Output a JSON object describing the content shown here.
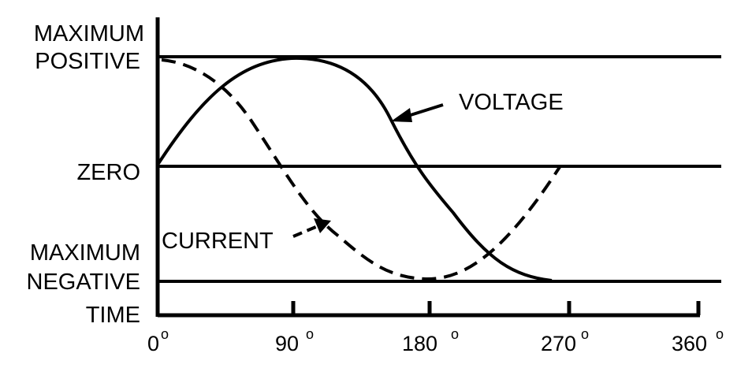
{
  "y_labels": {
    "max_positive_line1": "MAXIMUM",
    "max_positive_line2": "POSITIVE",
    "zero": "ZERO",
    "max_negative_line1": "MAXIMUM",
    "max_negative_line2": "NEGATIVE",
    "time": "TIME"
  },
  "x_ticks": [
    {
      "value": "0",
      "unit": "o"
    },
    {
      "value": "90",
      "unit": "o"
    },
    {
      "value": "180",
      "unit": "o"
    },
    {
      "value": "270",
      "unit": "o"
    },
    {
      "value": "360",
      "unit": "o"
    }
  ],
  "curve_labels": {
    "voltage": "VOLTAGE",
    "current": "CURRENT"
  }
}
